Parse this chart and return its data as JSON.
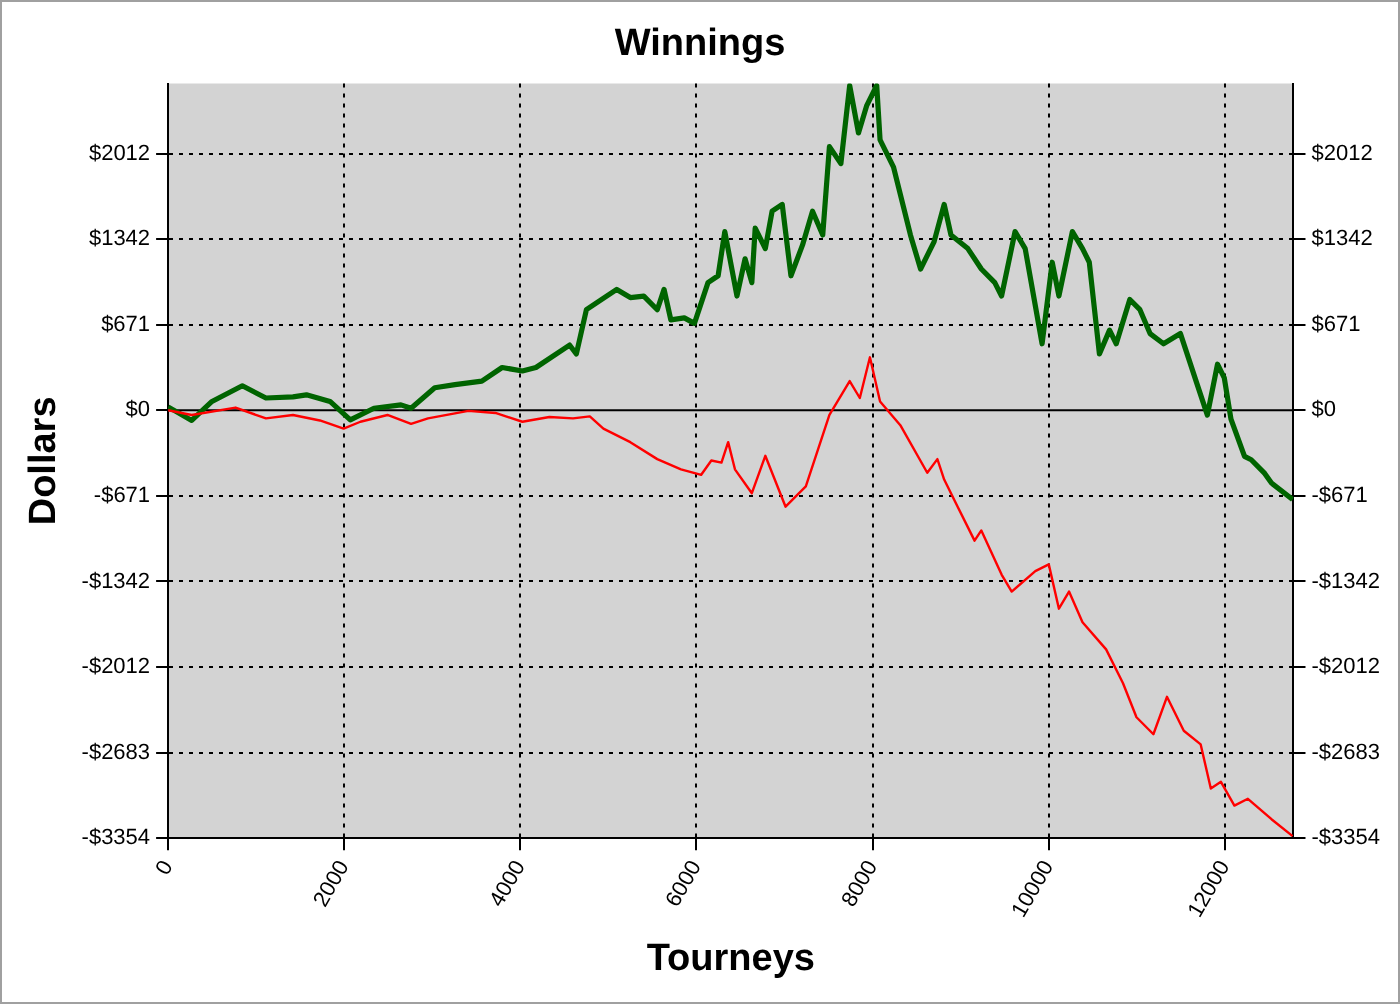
{
  "chart_data": {
    "type": "line",
    "title": "Winnings",
    "xlabel": "Tourneys",
    "ylabel": "Dollars",
    "xlim": [
      0,
      12780
    ],
    "xticks": [
      0,
      2000,
      4000,
      6000,
      8000,
      10000,
      12000
    ],
    "ylim": [
      -3354,
      2560
    ],
    "yticks": [
      {
        "value": -3354,
        "label": "-$3354"
      },
      {
        "value": -2683,
        "label": "-$2683"
      },
      {
        "value": -2012,
        "label": "-$2012"
      },
      {
        "value": -1342,
        "label": "-$1342"
      },
      {
        "value": -671,
        "label": "-$671"
      },
      {
        "value": 0,
        "label": "$0"
      },
      {
        "value": 671,
        "label": "$671"
      },
      {
        "value": 1342,
        "label": "$1342"
      },
      {
        "value": 2012,
        "label": "$2012"
      }
    ],
    "y2lim": [
      -3354,
      2560
    ],
    "y2ticks": [
      {
        "value": -3354,
        "label": "-$3354"
      },
      {
        "value": -2683,
        "label": "-$2683"
      },
      {
        "value": -2012,
        "label": "-$2012"
      },
      {
        "value": -1342,
        "label": "-$1342"
      },
      {
        "value": -671,
        "label": "-$671"
      },
      {
        "value": 0,
        "label": "$0"
      },
      {
        "value": 671,
        "label": "$671"
      },
      {
        "value": 1342,
        "label": "$1342"
      },
      {
        "value": 2012,
        "label": "$2012"
      }
    ],
    "grid": true,
    "legend": false,
    "marker": "none",
    "line_style": "solid",
    "ref_lines": [
      {
        "axis": "y",
        "value": 0,
        "color": "#000000"
      }
    ],
    "series": [
      {
        "color": "#006400",
        "x": [
          0,
          268,
          498,
          843,
          1111,
          1418,
          1571,
          1839,
          2069,
          2338,
          2644,
          2759,
          3028,
          3258,
          3563,
          3793,
          4023,
          4177,
          4559,
          4636,
          4750,
          5095,
          5249,
          5402,
          5555,
          5632,
          5709,
          5862,
          5977,
          6131,
          6246,
          6322,
          6460,
          6552,
          6629,
          6667,
          6782,
          6859,
          6974,
          7073,
          7204,
          7318,
          7434,
          7510,
          7640,
          7740,
          7840,
          7932,
          8047,
          8085,
          8238,
          8430,
          8545,
          8698,
          8813,
          8890,
          9082,
          9235,
          9388,
          9465,
          9618,
          9733,
          9925,
          10040,
          10116,
          10269,
          10384,
          10461,
          10576,
          10691,
          10767,
          10921,
          11036,
          11151,
          11304,
          11496,
          11687,
          11802,
          11917,
          11994,
          12070,
          12224,
          12300,
          12453,
          12530,
          12770
        ],
        "values": [
          26,
          -80,
          69,
          192,
          96,
          105,
          121,
          69,
          -75,
          16,
          42,
          16,
          176,
          201,
          228,
          335,
          308,
          335,
          511,
          441,
          788,
          947,
          883,
          895,
          788,
          947,
          708,
          724,
          681,
          1000,
          1054,
          1400,
          895,
          1187,
          1000,
          1427,
          1267,
          1560,
          1613,
          1054,
          1294,
          1560,
          1374,
          2066,
          1933,
          2545,
          2173,
          2385,
          2545,
          2119,
          1906,
          1374,
          1107,
          1320,
          1613,
          1374,
          1267,
          1107,
          1000,
          895,
          1400,
          1267,
          521,
          1160,
          895,
          1400,
          1267,
          1160,
          441,
          628,
          521,
          868,
          788,
          601,
          521,
          601,
          201,
          -38,
          361,
          254,
          -69,
          -361,
          -388,
          -495,
          -570,
          -700
        ]
      },
      {
        "color": "#ff0000",
        "x": [
          0,
          268,
          766,
          1111,
          1418,
          1724,
          1993,
          2184,
          2491,
          2759,
          2951,
          3410,
          3717,
          4023,
          4330,
          4598,
          4789,
          4943,
          5249,
          5555,
          5824,
          6054,
          6169,
          6284,
          6360,
          6437,
          6629,
          6782,
          7012,
          7242,
          7510,
          7740,
          7855,
          7970,
          8085,
          8315,
          8621,
          8736,
          8813,
          8966,
          9158,
          9235,
          9465,
          9580,
          9848,
          10001,
          10116,
          10231,
          10384,
          10652,
          10844,
          10997,
          11189,
          11343,
          11534,
          11726,
          11841,
          11956,
          12109,
          12262,
          12530,
          12770
        ],
        "values": [
          0,
          -37,
          21,
          -64,
          -37,
          -80,
          -144,
          -90,
          -37,
          -106,
          -64,
          -5,
          -21,
          -90,
          -53,
          -64,
          -48,
          -144,
          -250,
          -383,
          -463,
          -506,
          -394,
          -410,
          -250,
          -463,
          -650,
          -357,
          -756,
          -596,
          -37,
          229,
          96,
          415,
          69,
          -117,
          -490,
          -383,
          -543,
          -756,
          -1022,
          -942,
          -1288,
          -1421,
          -1261,
          -1208,
          -1555,
          -1421,
          -1661,
          -1874,
          -2140,
          -2406,
          -2539,
          -2246,
          -2512,
          -2619,
          -2965,
          -2912,
          -3098,
          -3045,
          -3205,
          -3338
        ]
      }
    ]
  }
}
